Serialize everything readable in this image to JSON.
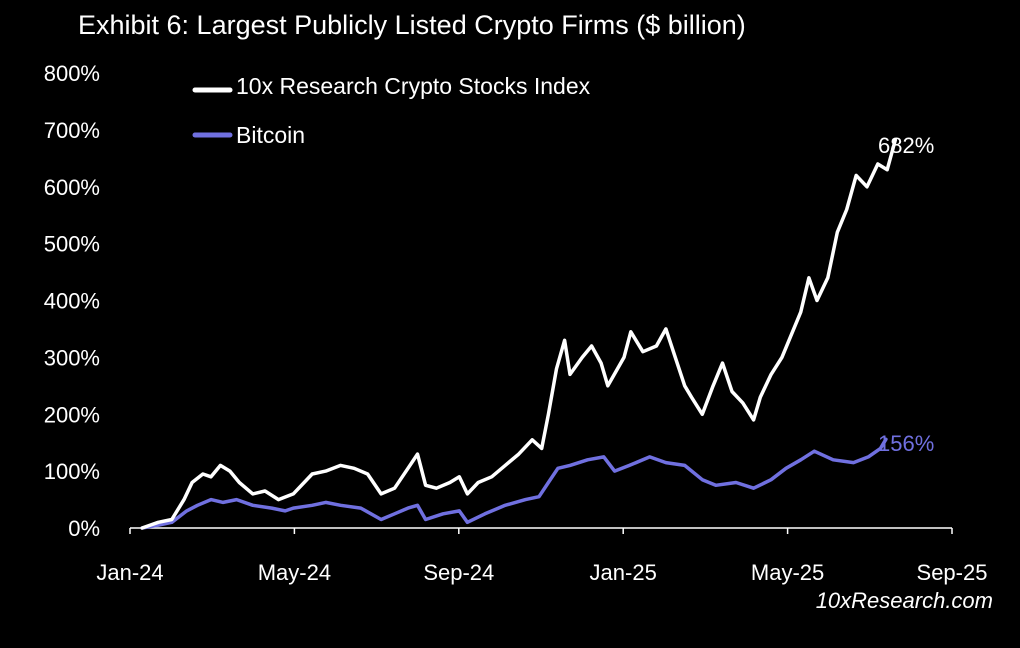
{
  "chart_data": {
    "type": "line",
    "title": "Exhibit 6: Largest Publicly Listed Crypto Firms ($ billion)",
    "xlabel": "",
    "ylabel": "",
    "x_ticks": [
      "Jan-24",
      "May-24",
      "Sep-24",
      "Jan-25",
      "May-25",
      "Sep-25"
    ],
    "y_ticks": [
      "0%",
      "100%",
      "200%",
      "300%",
      "400%",
      "500%",
      "600%",
      "700%",
      "800%"
    ],
    "ylim": [
      0,
      800
    ],
    "x_range": [
      "2024-01-01",
      "2025-09-01"
    ],
    "grid": false,
    "legend_position": "top-left",
    "series": [
      {
        "name": "10x Research Crypto Stocks Index",
        "color": "#ffffff",
        "end_label": "682%",
        "points": [
          [
            "2024-01-10",
            0
          ],
          [
            "2024-01-22",
            10
          ],
          [
            "2024-02-01",
            15
          ],
          [
            "2024-02-10",
            50
          ],
          [
            "2024-02-16",
            80
          ],
          [
            "2024-02-24",
            95
          ],
          [
            "2024-03-01",
            90
          ],
          [
            "2024-03-08",
            110
          ],
          [
            "2024-03-15",
            100
          ],
          [
            "2024-03-22",
            80
          ],
          [
            "2024-04-01",
            60
          ],
          [
            "2024-04-10",
            65
          ],
          [
            "2024-04-20",
            50
          ],
          [
            "2024-05-01",
            60
          ],
          [
            "2024-05-15",
            95
          ],
          [
            "2024-05-25",
            100
          ],
          [
            "2024-06-05",
            110
          ],
          [
            "2024-06-15",
            105
          ],
          [
            "2024-06-25",
            95
          ],
          [
            "2024-07-05",
            60
          ],
          [
            "2024-07-15",
            70
          ],
          [
            "2024-07-25",
            105
          ],
          [
            "2024-08-01",
            130
          ],
          [
            "2024-08-07",
            75
          ],
          [
            "2024-08-15",
            70
          ],
          [
            "2024-08-25",
            80
          ],
          [
            "2024-09-01",
            90
          ],
          [
            "2024-09-07",
            60
          ],
          [
            "2024-09-15",
            80
          ],
          [
            "2024-09-25",
            90
          ],
          [
            "2024-10-05",
            110
          ],
          [
            "2024-10-15",
            130
          ],
          [
            "2024-10-25",
            155
          ],
          [
            "2024-11-01",
            140
          ],
          [
            "2024-11-06",
            200
          ],
          [
            "2024-11-12",
            280
          ],
          [
            "2024-11-18",
            330
          ],
          [
            "2024-11-22",
            270
          ],
          [
            "2024-12-01",
            300
          ],
          [
            "2024-12-08",
            320
          ],
          [
            "2024-12-15",
            290
          ],
          [
            "2024-12-20",
            250
          ],
          [
            "2025-01-01",
            300
          ],
          [
            "2025-01-06",
            345
          ],
          [
            "2025-01-15",
            310
          ],
          [
            "2025-01-25",
            320
          ],
          [
            "2025-02-01",
            350
          ],
          [
            "2025-02-08",
            300
          ],
          [
            "2025-02-15",
            250
          ],
          [
            "2025-02-20",
            230
          ],
          [
            "2025-02-28",
            200
          ],
          [
            "2025-03-08",
            250
          ],
          [
            "2025-03-15",
            290
          ],
          [
            "2025-03-22",
            240
          ],
          [
            "2025-03-30",
            220
          ],
          [
            "2025-04-07",
            190
          ],
          [
            "2025-04-12",
            230
          ],
          [
            "2025-04-20",
            270
          ],
          [
            "2025-04-28",
            300
          ],
          [
            "2025-05-05",
            340
          ],
          [
            "2025-05-12",
            380
          ],
          [
            "2025-05-18",
            440
          ],
          [
            "2025-05-24",
            400
          ],
          [
            "2025-06-01",
            440
          ],
          [
            "2025-06-08",
            520
          ],
          [
            "2025-06-15",
            560
          ],
          [
            "2025-06-22",
            620
          ],
          [
            "2025-06-30",
            600
          ],
          [
            "2025-07-08",
            640
          ],
          [
            "2025-07-15",
            630
          ],
          [
            "2025-07-21",
            682
          ]
        ]
      },
      {
        "name": "Bitcoin",
        "color": "#7070e0",
        "end_label": "156%",
        "points": [
          [
            "2024-01-10",
            0
          ],
          [
            "2024-01-22",
            5
          ],
          [
            "2024-02-01",
            10
          ],
          [
            "2024-02-12",
            30
          ],
          [
            "2024-02-20",
            40
          ],
          [
            "2024-03-01",
            50
          ],
          [
            "2024-03-10",
            45
          ],
          [
            "2024-03-20",
            50
          ],
          [
            "2024-04-01",
            40
          ],
          [
            "2024-04-15",
            35
          ],
          [
            "2024-04-25",
            30
          ],
          [
            "2024-05-01",
            35
          ],
          [
            "2024-05-15",
            40
          ],
          [
            "2024-05-25",
            45
          ],
          [
            "2024-06-05",
            40
          ],
          [
            "2024-06-20",
            35
          ],
          [
            "2024-07-05",
            15
          ],
          [
            "2024-07-15",
            25
          ],
          [
            "2024-07-25",
            35
          ],
          [
            "2024-08-01",
            40
          ],
          [
            "2024-08-07",
            15
          ],
          [
            "2024-08-20",
            25
          ],
          [
            "2024-09-01",
            30
          ],
          [
            "2024-09-07",
            10
          ],
          [
            "2024-09-20",
            25
          ],
          [
            "2024-10-05",
            40
          ],
          [
            "2024-10-20",
            50
          ],
          [
            "2024-10-30",
            55
          ],
          [
            "2024-11-06",
            80
          ],
          [
            "2024-11-13",
            105
          ],
          [
            "2024-11-22",
            110
          ],
          [
            "2024-12-05",
            120
          ],
          [
            "2024-12-17",
            125
          ],
          [
            "2024-12-25",
            100
          ],
          [
            "2025-01-05",
            110
          ],
          [
            "2025-01-20",
            125
          ],
          [
            "2025-02-01",
            115
          ],
          [
            "2025-02-15",
            110
          ],
          [
            "2025-02-28",
            85
          ],
          [
            "2025-03-10",
            75
          ],
          [
            "2025-03-25",
            80
          ],
          [
            "2025-04-07",
            70
          ],
          [
            "2025-04-20",
            85
          ],
          [
            "2025-05-01",
            105
          ],
          [
            "2025-05-12",
            120
          ],
          [
            "2025-05-22",
            135
          ],
          [
            "2025-06-05",
            120
          ],
          [
            "2025-06-20",
            115
          ],
          [
            "2025-07-01",
            125
          ],
          [
            "2025-07-10",
            140
          ],
          [
            "2025-07-14",
            156
          ]
        ]
      }
    ],
    "watermark": "10xResearch.com"
  }
}
